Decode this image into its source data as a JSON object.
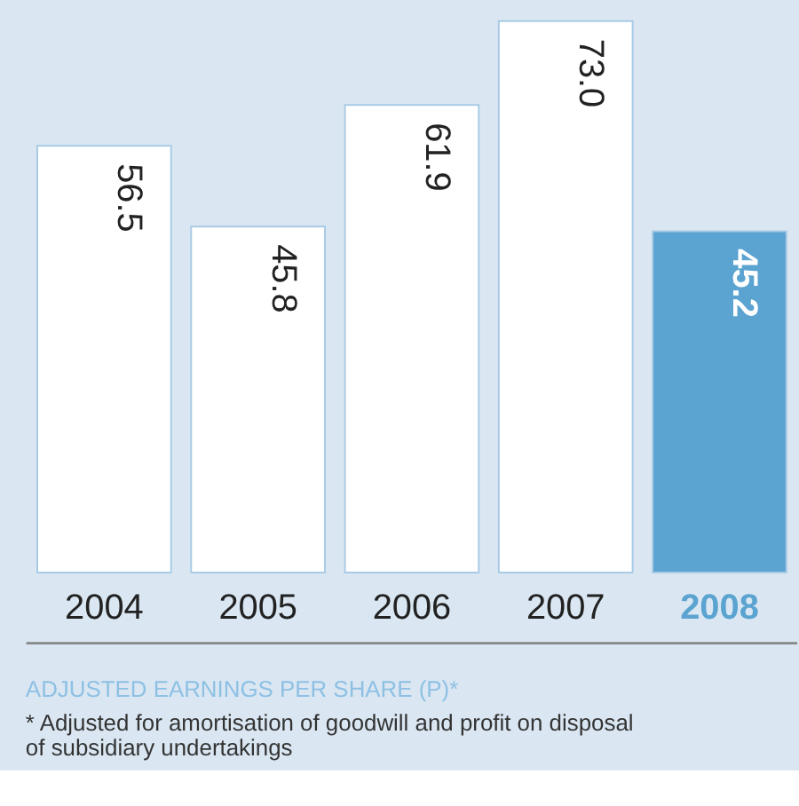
{
  "chart_data": {
    "type": "bar",
    "title": "ADJUSTED EARNINGS PER SHARE (P)*",
    "annotations": [
      "* Adjusted for amortisation of goodwill and profit on disposal",
      "of subsidiary undertakings"
    ],
    "categories": [
      "2004",
      "2005",
      "2006",
      "2007",
      "2008"
    ],
    "values": [
      56.5,
      45.8,
      61.9,
      73.0,
      45.2
    ],
    "colors": [
      "#ffffff",
      "#ffffff",
      "#ffffff",
      "#ffffff",
      "#5ba3d0"
    ],
    "value_labels": [
      "56.5",
      "45.8",
      "61.9",
      "73.0",
      "45.2"
    ],
    "grid": false
  }
}
